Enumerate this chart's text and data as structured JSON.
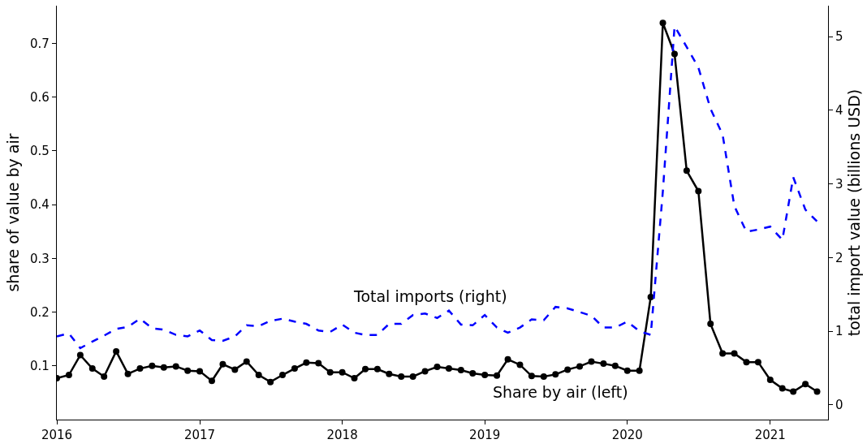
{
  "chart_data": {
    "type": "line",
    "ylabel": "share of value by air",
    "y2label": "total import value (billions USD)",
    "x": [
      "2016-01",
      "2016-02",
      "2016-03",
      "2016-04",
      "2016-05",
      "2016-06",
      "2016-07",
      "2016-08",
      "2016-09",
      "2016-10",
      "2016-11",
      "2016-12",
      "2017-01",
      "2017-02",
      "2017-03",
      "2017-04",
      "2017-05",
      "2017-06",
      "2017-07",
      "2017-08",
      "2017-09",
      "2017-10",
      "2017-11",
      "2017-12",
      "2018-01",
      "2018-02",
      "2018-03",
      "2018-04",
      "2018-05",
      "2018-06",
      "2018-07",
      "2018-08",
      "2018-09",
      "2018-10",
      "2018-11",
      "2018-12",
      "2019-01",
      "2019-02",
      "2019-03",
      "2019-04",
      "2019-05",
      "2019-06",
      "2019-07",
      "2019-08",
      "2019-09",
      "2019-10",
      "2019-11",
      "2019-12",
      "2020-01",
      "2020-02",
      "2020-03",
      "2020-04",
      "2020-05",
      "2020-06",
      "2020-07",
      "2020-08",
      "2020-09",
      "2020-10",
      "2020-11",
      "2020-12",
      "2021-01",
      "2021-02",
      "2021-03",
      "2021-04",
      "2021-05"
    ],
    "series": [
      {
        "color": "#000000",
        "marker": "circle",
        "line_style": "solid",
        "values": [
          0.077,
          0.083,
          0.12,
          0.095,
          0.08,
          0.127,
          0.085,
          0.095,
          0.1,
          0.097,
          0.099,
          0.091,
          0.09,
          0.072,
          0.103,
          0.093,
          0.108,
          0.083,
          0.07,
          0.083,
          0.095,
          0.106,
          0.105,
          0.088,
          0.088,
          0.077,
          0.094,
          0.094,
          0.085,
          0.08,
          0.08,
          0.09,
          0.098,
          0.095,
          0.092,
          0.086,
          0.083,
          0.082,
          0.112,
          0.102,
          0.081,
          0.08,
          0.084,
          0.093,
          0.099,
          0.108,
          0.104,
          0.1,
          0.091,
          0.091,
          0.228,
          0.738,
          0.68,
          0.463,
          0.425,
          0.178,
          0.123,
          0.123,
          0.107,
          0.107,
          0.074,
          0.058,
          0.052,
          0.066,
          0.052
        ]
      },
      {
        "color": "#0000ff",
        "marker": "none",
        "line_style": "dashed",
        "axis": "y2",
        "values": [
          0.93,
          0.97,
          0.77,
          0.86,
          0.94,
          1.03,
          1.06,
          1.17,
          1.04,
          1.02,
          0.95,
          0.93,
          1.01,
          0.88,
          0.87,
          0.93,
          1.08,
          1.07,
          1.14,
          1.17,
          1.13,
          1.1,
          1.01,
          0.99,
          1.09,
          0.98,
          0.95,
          0.95,
          1.1,
          1.1,
          1.22,
          1.24,
          1.18,
          1.28,
          1.09,
          1.08,
          1.22,
          1.05,
          0.98,
          1.05,
          1.16,
          1.15,
          1.33,
          1.31,
          1.26,
          1.21,
          1.05,
          1.05,
          1.13,
          1.0,
          0.95,
          2.9,
          5.14,
          4.86,
          4.58,
          4.02,
          3.67,
          2.7,
          2.35,
          2.38,
          2.42,
          2.24,
          3.09,
          2.65,
          2.49
        ]
      }
    ],
    "xlim": [
      "2016-01-01",
      "2021-05-29"
    ],
    "xticks": [
      {
        "value": "2016-01-01",
        "label": "2016"
      },
      {
        "value": "2017-01-01",
        "label": "2017"
      },
      {
        "value": "2018-01-01",
        "label": "2018"
      },
      {
        "value": "2019-01-01",
        "label": "2019"
      },
      {
        "value": "2020-01-01",
        "label": "2020"
      },
      {
        "value": "2021-01-01",
        "label": "2021"
      }
    ],
    "ylim": [
      0,
      0.77
    ],
    "yticks": [
      0.1,
      0.2,
      0.3,
      0.4,
      0.5,
      0.6,
      0.7
    ],
    "y2lim": [
      -0.2,
      5.42
    ],
    "y2ticks": [
      0,
      1,
      2,
      3,
      4,
      5
    ],
    "annotations": [
      "Total imports (right)",
      "Share by air (left)"
    ]
  }
}
